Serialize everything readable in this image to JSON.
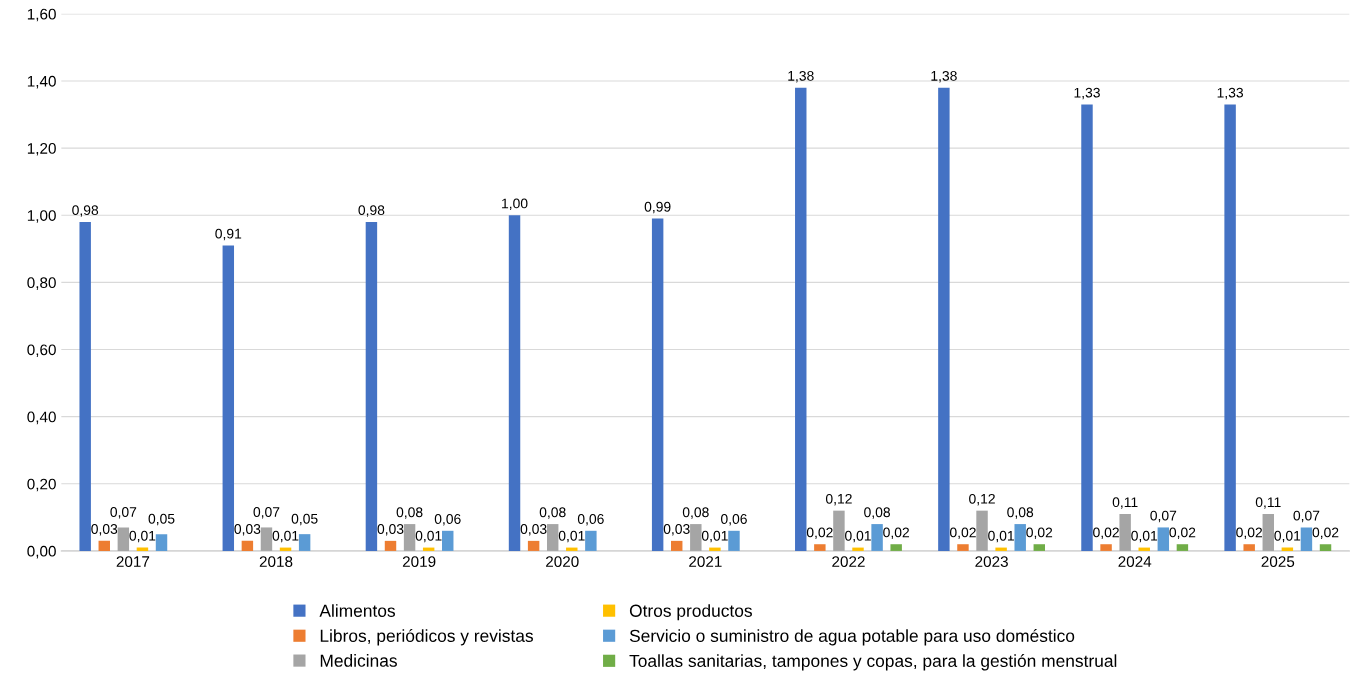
{
  "chart_data": {
    "type": "bar",
    "categories": [
      "2017",
      "2018",
      "2019",
      "2020",
      "2021",
      "2022",
      "2023",
      "2024",
      "2025"
    ],
    "ylim": [
      0,
      1.6
    ],
    "yticks": [
      {
        "value": 0,
        "label": "0,00"
      },
      {
        "value": 0.2,
        "label": "0,20"
      },
      {
        "value": 0.4,
        "label": "0,40"
      },
      {
        "value": 0.6,
        "label": "0,60"
      },
      {
        "value": 0.8,
        "label": "0,80"
      },
      {
        "value": 1.0,
        "label": "1,00"
      },
      {
        "value": 1.2,
        "label": "1,20"
      },
      {
        "value": 1.4,
        "label": "1,40"
      },
      {
        "value": 1.6,
        "label": "1,60"
      }
    ],
    "grid": "y",
    "legend": "bottom",
    "series": [
      {
        "name": "Alimentos",
        "color": "#4472c4",
        "values": [
          0.98,
          0.91,
          0.98,
          1.0,
          0.99,
          1.38,
          1.38,
          1.33,
          1.33
        ],
        "value_labels": [
          "0,98",
          "0,91",
          "0,98",
          "1,00",
          "0,99",
          "1,38",
          "1,38",
          "1,33",
          "1,33"
        ]
      },
      {
        "name": "Libros, periódicos y revistas",
        "color": "#ed7d31",
        "values": [
          0.03,
          0.03,
          0.03,
          0.03,
          0.03,
          0.02,
          0.02,
          0.02,
          0.02
        ],
        "value_labels": [
          "0,03",
          "0,03",
          "0,03",
          "0,03",
          "0,03",
          "0,02",
          "0,02",
          "0,02",
          "0,02"
        ]
      },
      {
        "name": "Medicinas",
        "color": "#a5a5a5",
        "values": [
          0.07,
          0.07,
          0.08,
          0.08,
          0.08,
          0.12,
          0.12,
          0.11,
          0.11
        ],
        "value_labels": [
          "0,07",
          "0,07",
          "0,08",
          "0,08",
          "0,08",
          "0,12",
          "0,12",
          "0,11",
          "0,11"
        ]
      },
      {
        "name": "Otros productos",
        "color": "#ffc000",
        "values": [
          0.01,
          0.01,
          0.01,
          0.01,
          0.01,
          0.01,
          0.01,
          0.01,
          0.01
        ],
        "value_labels": [
          "0,01",
          "0,01",
          "0,01",
          "0,01",
          "0,01",
          "0,01",
          "0,01",
          "0,01",
          "0,01"
        ]
      },
      {
        "name": "Servicio o suministro de agua potable para uso doméstico",
        "color": "#5b9bd5",
        "values": [
          0.05,
          0.05,
          0.06,
          0.06,
          0.06,
          0.08,
          0.08,
          0.07,
          0.07
        ],
        "value_labels": [
          "0,05",
          "0,05",
          "0,06",
          "0,06",
          "0,06",
          "0,08",
          "0,08",
          "0,07",
          "0,07"
        ]
      },
      {
        "name": "Toallas sanitarias, tampones y copas, para la gestión menstrual",
        "color": "#70ad47",
        "values": [
          null,
          null,
          null,
          null,
          null,
          0.02,
          0.02,
          0.02,
          0.02
        ],
        "value_labels": [
          null,
          null,
          null,
          null,
          null,
          "0,02",
          "0,02",
          "0,02",
          "0,02"
        ]
      }
    ]
  }
}
